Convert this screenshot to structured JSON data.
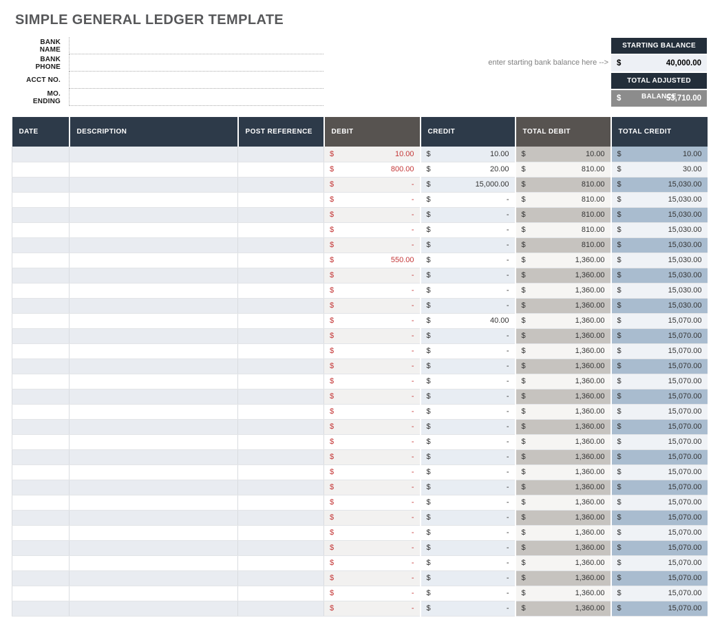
{
  "page": {
    "title": "SIMPLE GENERAL LEDGER TEMPLATE"
  },
  "form": {
    "fields": [
      {
        "label": "BANK NAME",
        "value": ""
      },
      {
        "label": "BANK PHONE",
        "value": ""
      },
      {
        "label": "ACCT NO.",
        "value": ""
      },
      {
        "label": "MO. ENDING",
        "value": ""
      }
    ]
  },
  "balances": {
    "hint": "enter starting bank balance here -->",
    "starting": {
      "label": "STARTING BALANCE",
      "currency": "$",
      "value": "40,000.00"
    },
    "adjusted": {
      "label": "TOTAL ADJUSTED BALANCE",
      "currency": "$",
      "value": "53,710.00"
    }
  },
  "colors": {
    "header_navy": "#2d3a49",
    "header_gray": "#575350",
    "balance_header_navy": "#232e3a",
    "starting_value_bg": "#edf0f5",
    "adjusted_value_bg": "#8c8c8c",
    "debit_red": "#c43636",
    "stripe_left": "#e9ecf1",
    "stripe_total_debit": "#c6c3bf",
    "stripe_total_credit": "#a9bccf"
  },
  "ledger": {
    "currency": "$",
    "columns": [
      "DATE",
      "DESCRIPTION",
      "POST REFERENCE",
      "DEBIT",
      "CREDIT",
      "TOTAL DEBIT",
      "TOTAL CREDIT"
    ],
    "rows": [
      {
        "date": "",
        "description": "",
        "post_reference": "",
        "debit": "10.00",
        "credit": "10.00",
        "total_debit": "10.00",
        "total_credit": "10.00"
      },
      {
        "date": "",
        "description": "",
        "post_reference": "",
        "debit": "800.00",
        "credit": "20.00",
        "total_debit": "810.00",
        "total_credit": "30.00"
      },
      {
        "date": "",
        "description": "",
        "post_reference": "",
        "debit": "-",
        "credit": "15,000.00",
        "total_debit": "810.00",
        "total_credit": "15,030.00"
      },
      {
        "date": "",
        "description": "",
        "post_reference": "",
        "debit": "-",
        "credit": "-",
        "total_debit": "810.00",
        "total_credit": "15,030.00"
      },
      {
        "date": "",
        "description": "",
        "post_reference": "",
        "debit": "-",
        "credit": "-",
        "total_debit": "810.00",
        "total_credit": "15,030.00"
      },
      {
        "date": "",
        "description": "",
        "post_reference": "",
        "debit": "-",
        "credit": "-",
        "total_debit": "810.00",
        "total_credit": "15,030.00"
      },
      {
        "date": "",
        "description": "",
        "post_reference": "",
        "debit": "-",
        "credit": "-",
        "total_debit": "810.00",
        "total_credit": "15,030.00"
      },
      {
        "date": "",
        "description": "",
        "post_reference": "",
        "debit": "550.00",
        "credit": "-",
        "total_debit": "1,360.00",
        "total_credit": "15,030.00"
      },
      {
        "date": "",
        "description": "",
        "post_reference": "",
        "debit": "-",
        "credit": "-",
        "total_debit": "1,360.00",
        "total_credit": "15,030.00"
      },
      {
        "date": "",
        "description": "",
        "post_reference": "",
        "debit": "-",
        "credit": "-",
        "total_debit": "1,360.00",
        "total_credit": "15,030.00"
      },
      {
        "date": "",
        "description": "",
        "post_reference": "",
        "debit": "-",
        "credit": "-",
        "total_debit": "1,360.00",
        "total_credit": "15,030.00"
      },
      {
        "date": "",
        "description": "",
        "post_reference": "",
        "debit": "-",
        "credit": "40.00",
        "total_debit": "1,360.00",
        "total_credit": "15,070.00"
      },
      {
        "date": "",
        "description": "",
        "post_reference": "",
        "debit": "-",
        "credit": "-",
        "total_debit": "1,360.00",
        "total_credit": "15,070.00"
      },
      {
        "date": "",
        "description": "",
        "post_reference": "",
        "debit": "-",
        "credit": "-",
        "total_debit": "1,360.00",
        "total_credit": "15,070.00"
      },
      {
        "date": "",
        "description": "",
        "post_reference": "",
        "debit": "-",
        "credit": "-",
        "total_debit": "1,360.00",
        "total_credit": "15,070.00"
      },
      {
        "date": "",
        "description": "",
        "post_reference": "",
        "debit": "-",
        "credit": "-",
        "total_debit": "1,360.00",
        "total_credit": "15,070.00"
      },
      {
        "date": "",
        "description": "",
        "post_reference": "",
        "debit": "-",
        "credit": "-",
        "total_debit": "1,360.00",
        "total_credit": "15,070.00"
      },
      {
        "date": "",
        "description": "",
        "post_reference": "",
        "debit": "-",
        "credit": "-",
        "total_debit": "1,360.00",
        "total_credit": "15,070.00"
      },
      {
        "date": "",
        "description": "",
        "post_reference": "",
        "debit": "-",
        "credit": "-",
        "total_debit": "1,360.00",
        "total_credit": "15,070.00"
      },
      {
        "date": "",
        "description": "",
        "post_reference": "",
        "debit": "-",
        "credit": "-",
        "total_debit": "1,360.00",
        "total_credit": "15,070.00"
      },
      {
        "date": "",
        "description": "",
        "post_reference": "",
        "debit": "-",
        "credit": "-",
        "total_debit": "1,360.00",
        "total_credit": "15,070.00"
      },
      {
        "date": "",
        "description": "",
        "post_reference": "",
        "debit": "-",
        "credit": "-",
        "total_debit": "1,360.00",
        "total_credit": "15,070.00"
      },
      {
        "date": "",
        "description": "",
        "post_reference": "",
        "debit": "-",
        "credit": "-",
        "total_debit": "1,360.00",
        "total_credit": "15,070.00"
      },
      {
        "date": "",
        "description": "",
        "post_reference": "",
        "debit": "-",
        "credit": "-",
        "total_debit": "1,360.00",
        "total_credit": "15,070.00"
      },
      {
        "date": "",
        "description": "",
        "post_reference": "",
        "debit": "-",
        "credit": "-",
        "total_debit": "1,360.00",
        "total_credit": "15,070.00"
      },
      {
        "date": "",
        "description": "",
        "post_reference": "",
        "debit": "-",
        "credit": "-",
        "total_debit": "1,360.00",
        "total_credit": "15,070.00"
      },
      {
        "date": "",
        "description": "",
        "post_reference": "",
        "debit": "-",
        "credit": "-",
        "total_debit": "1,360.00",
        "total_credit": "15,070.00"
      },
      {
        "date": "",
        "description": "",
        "post_reference": "",
        "debit": "-",
        "credit": "-",
        "total_debit": "1,360.00",
        "total_credit": "15,070.00"
      },
      {
        "date": "",
        "description": "",
        "post_reference": "",
        "debit": "-",
        "credit": "-",
        "total_debit": "1,360.00",
        "total_credit": "15,070.00"
      },
      {
        "date": "",
        "description": "",
        "post_reference": "",
        "debit": "-",
        "credit": "-",
        "total_debit": "1,360.00",
        "total_credit": "15,070.00"
      },
      {
        "date": "",
        "description": "",
        "post_reference": "",
        "debit": "-",
        "credit": "-",
        "total_debit": "1,360.00",
        "total_credit": "15,070.00"
      }
    ]
  }
}
